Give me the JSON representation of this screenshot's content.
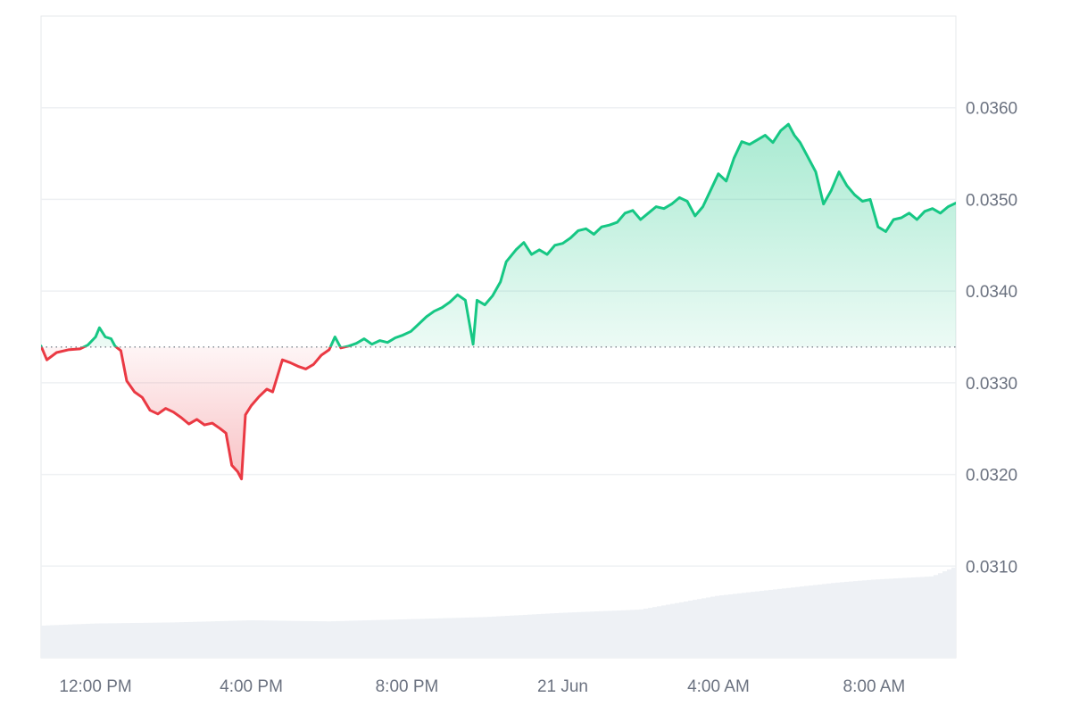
{
  "chart_data": {
    "type": "area",
    "title": "",
    "xlabel": "",
    "ylabel": "",
    "ylim": [
      0.03,
      0.037
    ],
    "y_ticks": [
      "0.0360",
      "0.0350",
      "0.0340",
      "0.0330",
      "0.0320",
      "0.0310"
    ],
    "x_ticks": [
      "12:00 PM",
      "4:00 PM",
      "8:00 PM",
      "21 Jun",
      "4:00 AM",
      "8:00 AM"
    ],
    "x_tick_times_h": [
      12,
      16,
      20,
      24,
      28,
      32
    ],
    "x_range_h": [
      10.6,
      34.1
    ],
    "baseline": 0.03339,
    "grid": true,
    "colors": {
      "up": "#16c784",
      "down": "#ea3943",
      "grid": "#eef0f3",
      "volume": "#eef1f5",
      "axis_text": "#6b7280"
    },
    "series": [
      {
        "points": [
          [
            10.6,
            0.0334
          ],
          [
            10.75,
            0.03325
          ],
          [
            11.0,
            0.03333
          ],
          [
            11.3,
            0.03336
          ],
          [
            11.6,
            0.03337
          ],
          [
            11.8,
            0.03341
          ],
          [
            12.0,
            0.0335
          ],
          [
            12.1,
            0.0336
          ],
          [
            12.25,
            0.0335
          ],
          [
            12.4,
            0.03348
          ],
          [
            12.5,
            0.0334
          ],
          [
            12.65,
            0.03335
          ],
          [
            12.8,
            0.03302
          ],
          [
            13.0,
            0.0329
          ],
          [
            13.2,
            0.03284
          ],
          [
            13.4,
            0.0327
          ],
          [
            13.6,
            0.03266
          ],
          [
            13.8,
            0.03272
          ],
          [
            14.0,
            0.03268
          ],
          [
            14.2,
            0.03262
          ],
          [
            14.4,
            0.03255
          ],
          [
            14.6,
            0.0326
          ],
          [
            14.8,
            0.03254
          ],
          [
            15.0,
            0.03256
          ],
          [
            15.2,
            0.0325
          ],
          [
            15.35,
            0.03245
          ],
          [
            15.5,
            0.0321
          ],
          [
            15.65,
            0.03203
          ],
          [
            15.75,
            0.03195
          ],
          [
            15.85,
            0.03265
          ],
          [
            16.0,
            0.03275
          ],
          [
            16.2,
            0.03285
          ],
          [
            16.4,
            0.03293
          ],
          [
            16.55,
            0.0329
          ],
          [
            16.8,
            0.03325
          ],
          [
            17.0,
            0.03322
          ],
          [
            17.2,
            0.03318
          ],
          [
            17.4,
            0.03315
          ],
          [
            17.6,
            0.0332
          ],
          [
            17.8,
            0.0333
          ],
          [
            18.0,
            0.03336
          ],
          [
            18.15,
            0.0335
          ],
          [
            18.3,
            0.03338
          ],
          [
            18.5,
            0.0334
          ],
          [
            18.7,
            0.03343
          ],
          [
            18.9,
            0.03348
          ],
          [
            19.1,
            0.03342
          ],
          [
            19.3,
            0.03346
          ],
          [
            19.5,
            0.03344
          ],
          [
            19.7,
            0.03349
          ],
          [
            19.9,
            0.03352
          ],
          [
            20.1,
            0.03356
          ],
          [
            20.3,
            0.03364
          ],
          [
            20.5,
            0.03372
          ],
          [
            20.7,
            0.03378
          ],
          [
            20.9,
            0.03382
          ],
          [
            21.1,
            0.03388
          ],
          [
            21.3,
            0.03396
          ],
          [
            21.5,
            0.0339
          ],
          [
            21.7,
            0.03342
          ],
          [
            21.8,
            0.0339
          ],
          [
            22.0,
            0.03385
          ],
          [
            22.2,
            0.03395
          ],
          [
            22.4,
            0.0341
          ],
          [
            22.55,
            0.03432
          ],
          [
            22.8,
            0.03445
          ],
          [
            23.0,
            0.03453
          ],
          [
            23.2,
            0.0344
          ],
          [
            23.4,
            0.03445
          ],
          [
            23.6,
            0.0344
          ],
          [
            23.8,
            0.0345
          ],
          [
            24.0,
            0.03452
          ],
          [
            24.2,
            0.03458
          ],
          [
            24.4,
            0.03466
          ],
          [
            24.6,
            0.03468
          ],
          [
            24.8,
            0.03462
          ],
          [
            25.0,
            0.0347
          ],
          [
            25.2,
            0.03472
          ],
          [
            25.4,
            0.03475
          ],
          [
            25.6,
            0.03485
          ],
          [
            25.8,
            0.03488
          ],
          [
            26.0,
            0.03478
          ],
          [
            26.2,
            0.03485
          ],
          [
            26.4,
            0.03492
          ],
          [
            26.6,
            0.0349
          ],
          [
            26.8,
            0.03495
          ],
          [
            27.0,
            0.03502
          ],
          [
            27.2,
            0.03498
          ],
          [
            27.4,
            0.03482
          ],
          [
            27.6,
            0.03492
          ],
          [
            27.8,
            0.0351
          ],
          [
            28.0,
            0.03528
          ],
          [
            28.2,
            0.0352
          ],
          [
            28.4,
            0.03545
          ],
          [
            28.6,
            0.03563
          ],
          [
            28.8,
            0.0356
          ],
          [
            29.0,
            0.03565
          ],
          [
            29.2,
            0.0357
          ],
          [
            29.4,
            0.03562
          ],
          [
            29.6,
            0.03575
          ],
          [
            29.8,
            0.03582
          ],
          [
            29.95,
            0.0357
          ],
          [
            30.1,
            0.03562
          ],
          [
            30.3,
            0.03546
          ],
          [
            30.5,
            0.0353
          ],
          [
            30.7,
            0.03495
          ],
          [
            30.9,
            0.0351
          ],
          [
            31.1,
            0.0353
          ],
          [
            31.3,
            0.03515
          ],
          [
            31.5,
            0.03505
          ],
          [
            31.7,
            0.03498
          ],
          [
            31.9,
            0.035
          ],
          [
            32.1,
            0.0347
          ],
          [
            32.3,
            0.03465
          ],
          [
            32.5,
            0.03478
          ],
          [
            32.7,
            0.0348
          ],
          [
            32.9,
            0.03485
          ],
          [
            33.1,
            0.03478
          ],
          [
            33.3,
            0.03487
          ],
          [
            33.5,
            0.0349
          ],
          [
            33.7,
            0.03485
          ],
          [
            33.9,
            0.03492
          ],
          [
            34.1,
            0.03496
          ]
        ]
      }
    ],
    "volume": [
      [
        10.6,
        0.3
      ],
      [
        12.0,
        0.32
      ],
      [
        14.0,
        0.33
      ],
      [
        16.0,
        0.35
      ],
      [
        18.0,
        0.34
      ],
      [
        20.0,
        0.36
      ],
      [
        22.0,
        0.38
      ],
      [
        24.0,
        0.42
      ],
      [
        26.0,
        0.45
      ],
      [
        28.0,
        0.58
      ],
      [
        30.0,
        0.66
      ],
      [
        31.0,
        0.7
      ],
      [
        32.0,
        0.73
      ],
      [
        33.5,
        0.76
      ],
      [
        34.1,
        0.85
      ]
    ]
  }
}
